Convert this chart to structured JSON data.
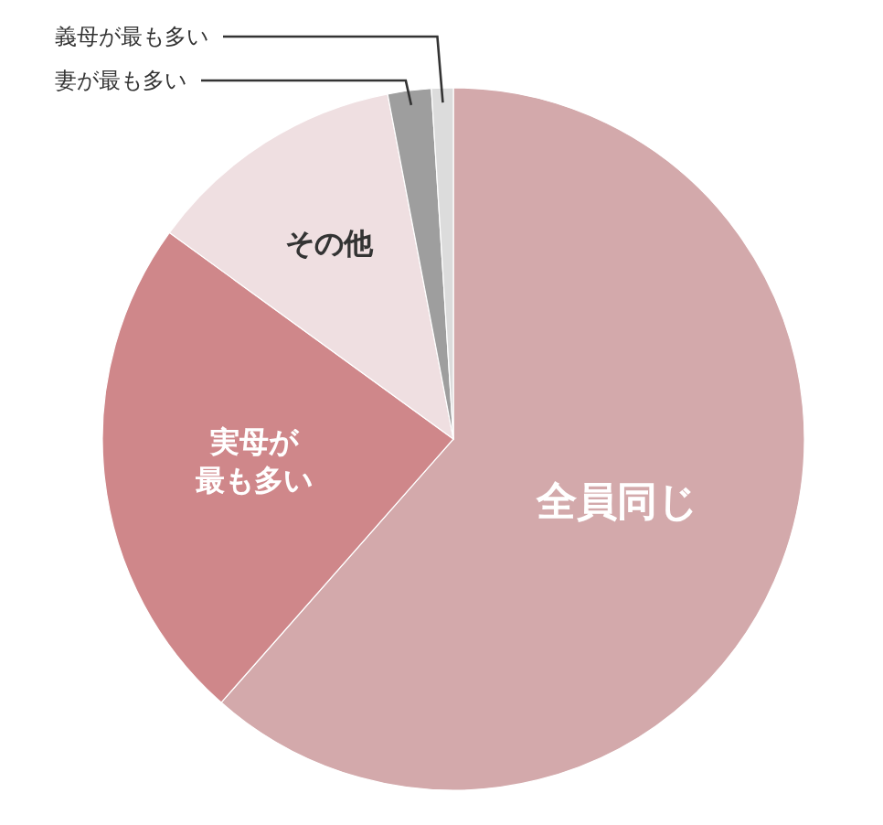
{
  "chart_data": {
    "type": "pie",
    "categories": [
      "全員同じ",
      "実母が最も多い",
      "その他",
      "妻が最も多い",
      "義母が最も多い"
    ],
    "values": [
      61.5,
      23.5,
      12,
      2,
      1
    ],
    "colors": [
      "#d3a9ab",
      "#cf878a",
      "#efdfe1",
      "#9e9e9e",
      "#dcdcdc"
    ]
  }
}
